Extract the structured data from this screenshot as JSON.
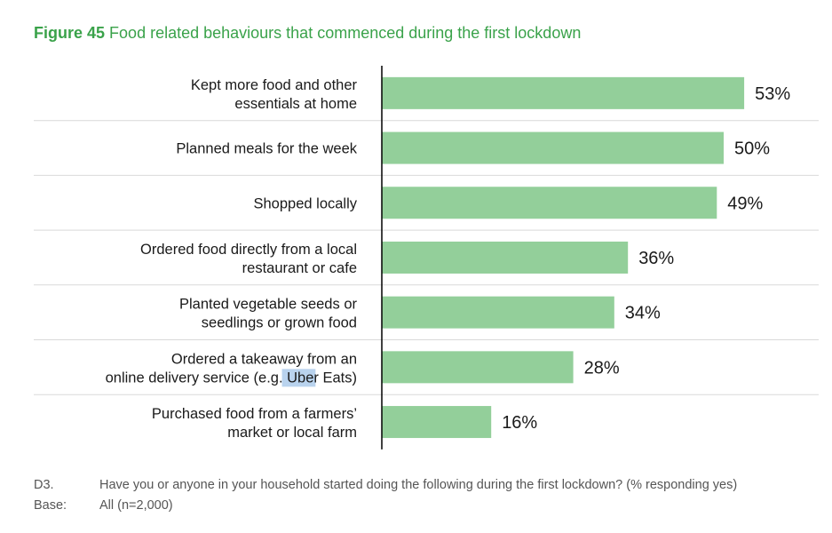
{
  "figure": {
    "number": "Figure 45",
    "title": "Food related behaviours that commenced during the first lockdown"
  },
  "chart_data": {
    "type": "bar",
    "orientation": "horizontal",
    "categories": [
      [
        "Kept more food and other",
        "essentials at home"
      ],
      [
        "Planned meals for the week"
      ],
      [
        "Shopped locally"
      ],
      [
        "Ordered food directly from a local",
        "restaurant or cafe"
      ],
      [
        "Planted vegetable seeds or",
        "seedlings or grown food"
      ],
      [
        "Ordered a takeaway from an",
        "online delivery service (e.g. Uber Eats)"
      ],
      [
        "Purchased food from a farmers’",
        "market or local farm"
      ]
    ],
    "values": [
      53,
      50,
      49,
      36,
      34,
      28,
      16
    ],
    "value_labels": [
      "53%",
      "50%",
      "49%",
      "36%",
      "34%",
      "28%",
      "16%"
    ],
    "unit": "%",
    "xlim": [
      0,
      100
    ],
    "grid": false,
    "legend": "none",
    "bar_color": "#93cf9a"
  },
  "footnote": {
    "question_code": "D3.",
    "question": "Have you or anyone in your household started doing the following during the first lockdown? (% responding yes)",
    "base_label": "Base:",
    "base": "All (n=2,000)"
  },
  "highlight": {
    "term": "Uber",
    "color": "#b9d3ee"
  }
}
